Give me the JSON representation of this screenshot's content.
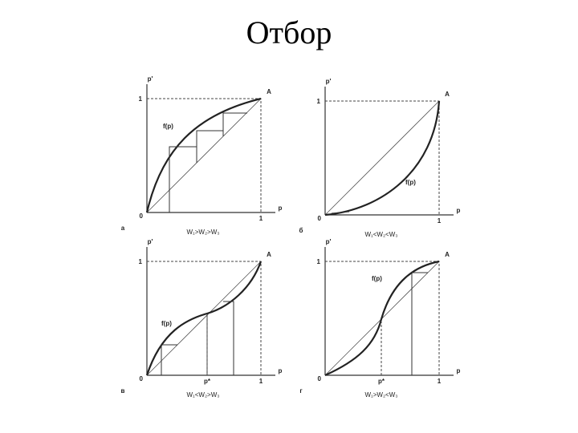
{
  "title": "Отбор",
  "panels": [
    {
      "letter": "а",
      "y_label": "p'",
      "x_label": "p",
      "y_one": "1",
      "x_one": "1",
      "zero": "0",
      "point": "A",
      "curve_label": "f(p)",
      "condition": "W₁>W₂>W₃"
    },
    {
      "letter": "б",
      "y_label": "p'",
      "x_label": "p",
      "y_one": "1",
      "x_one": "1",
      "zero": "0",
      "point": "A",
      "curve_label": "f(p)",
      "condition": "W₁<W₂<W₃"
    },
    {
      "letter": "в",
      "y_label": "p'",
      "x_label": "p",
      "y_one": "1",
      "x_one": "1",
      "zero": "0",
      "point": "A",
      "curve_label": "f(p)",
      "condition": "W₁<W₂>W₃",
      "p_star": "p*"
    },
    {
      "letter": "г",
      "y_label": "p'",
      "x_label": "p",
      "y_one": "1",
      "x_one": "1",
      "zero": "0",
      "point": "A",
      "curve_label": "f(p)",
      "condition": "W₁>W₂<W₃",
      "p_star": "p*"
    }
  ]
}
